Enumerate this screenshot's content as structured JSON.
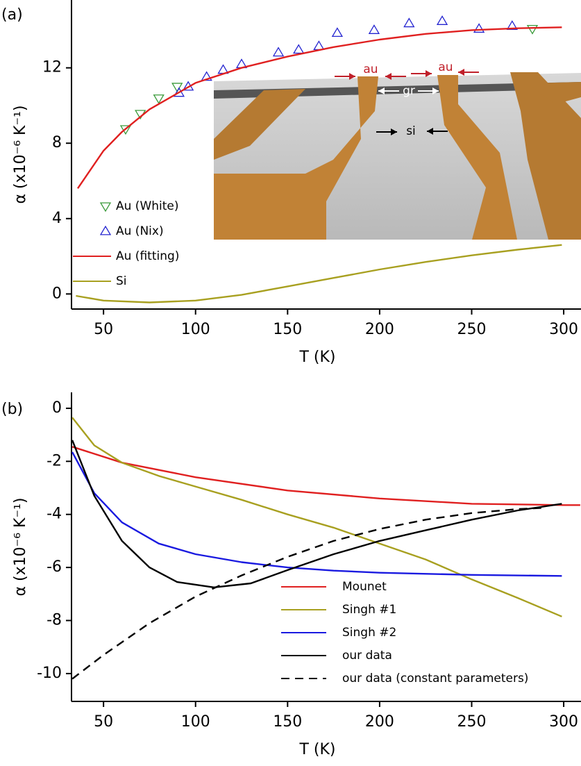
{
  "chart_data": [
    {
      "type": "line",
      "panel_label": "(a)",
      "x_label": "T (K)",
      "y_label": "α (x10⁻⁶ K⁻¹)",
      "xlim": [
        32.6,
        309.4
      ],
      "xticks": [
        50,
        100,
        150,
        200,
        250,
        300
      ],
      "ylim": [
        -0.8,
        15.6
      ],
      "yticks": [
        0,
        4,
        8,
        12
      ],
      "legend": "lower left",
      "inset_labels": [
        "au",
        "au",
        "gr",
        "si"
      ],
      "series": [
        {
          "name": "Au (White)",
          "color": "#3a9a3a",
          "marker": "triangle-down",
          "x": [
            62,
            70,
            80,
            90,
            283
          ],
          "values": [
            8.75,
            9.56,
            10.38,
            11.0,
            14.07
          ]
        },
        {
          "name": "Au (Nix)",
          "color": "#2424d0",
          "marker": "triangle-up",
          "x": [
            91,
            96,
            106,
            115,
            125,
            145,
            156,
            167,
            177,
            197,
            216,
            234,
            254,
            272
          ],
          "values": [
            10.67,
            11.0,
            11.52,
            11.89,
            12.19,
            12.81,
            12.96,
            13.15,
            13.85,
            14.0,
            14.36,
            14.48,
            14.07,
            14.22
          ]
        },
        {
          "name": "Au (fitting)",
          "color": "#e02020",
          "x": [
            36,
            50,
            60,
            75,
            100,
            125,
            150,
            175,
            200,
            225,
            250,
            275,
            299
          ],
          "values": [
            5.6,
            7.6,
            8.6,
            9.8,
            11.2,
            12.0,
            12.6,
            13.1,
            13.5,
            13.8,
            14.0,
            14.1,
            14.15
          ]
        },
        {
          "name": "Si",
          "color": "#a8a020",
          "x": [
            35,
            50,
            75,
            100,
            125,
            150,
            175,
            200,
            225,
            250,
            275,
            299
          ],
          "values": [
            -0.1,
            -0.35,
            -0.45,
            -0.35,
            -0.05,
            0.4,
            0.85,
            1.3,
            1.7,
            2.05,
            2.35,
            2.6
          ]
        }
      ]
    },
    {
      "type": "line",
      "panel_label": "(b)",
      "x_label": "T (K)",
      "y_label": "α (x10⁻⁶ K⁻¹)",
      "xlim": [
        32.6,
        309.4
      ],
      "xticks": [
        50,
        100,
        150,
        200,
        250,
        300
      ],
      "ylim": [
        -11.05,
        0.6
      ],
      "yticks": [
        0,
        -2,
        -4,
        -6,
        -8,
        -10
      ],
      "legend": "lower right",
      "series": [
        {
          "name": "Mounet",
          "color": "#e02020",
          "x": [
            33,
            60,
            100,
            150,
            200,
            250,
            300,
            309
          ],
          "values": [
            -1.45,
            -2.05,
            -2.6,
            -3.1,
            -3.4,
            -3.6,
            -3.65,
            -3.65
          ]
        },
        {
          "name": "Singh #1",
          "color": "#a8a020",
          "x": [
            33,
            45,
            60,
            80,
            100,
            125,
            150,
            175,
            200,
            225,
            250,
            275,
            299
          ],
          "values": [
            -0.35,
            -1.4,
            -2.05,
            -2.55,
            -2.95,
            -3.45,
            -4.0,
            -4.5,
            -5.1,
            -5.7,
            -6.45,
            -7.15,
            -7.85
          ]
        },
        {
          "name": "Singh #2",
          "color": "#1a1ae0",
          "x": [
            33,
            45,
            60,
            80,
            100,
            125,
            150,
            175,
            200,
            250,
            299
          ],
          "values": [
            -1.65,
            -3.2,
            -4.3,
            -5.1,
            -5.5,
            -5.8,
            -6.0,
            -6.12,
            -6.2,
            -6.28,
            -6.32
          ]
        },
        {
          "name": "our data",
          "color": "#000000",
          "x": [
            33,
            45,
            60,
            75,
            90,
            110,
            130,
            150,
            175,
            200,
            225,
            250,
            275,
            299
          ],
          "values": [
            -1.2,
            -3.3,
            -5.0,
            -6.0,
            -6.55,
            -6.75,
            -6.6,
            -6.1,
            -5.5,
            -5.0,
            -4.6,
            -4.2,
            -3.85,
            -3.6
          ]
        },
        {
          "name": "our data (constant parameters)",
          "color": "#000000",
          "linestyle": "dashed",
          "x": [
            33,
            50,
            75,
            100,
            125,
            150,
            175,
            200,
            225,
            250,
            275,
            290
          ],
          "values": [
            -10.2,
            -9.3,
            -8.1,
            -7.1,
            -6.3,
            -5.6,
            -5.0,
            -4.55,
            -4.2,
            -3.95,
            -3.8,
            -3.75
          ]
        }
      ]
    }
  ]
}
